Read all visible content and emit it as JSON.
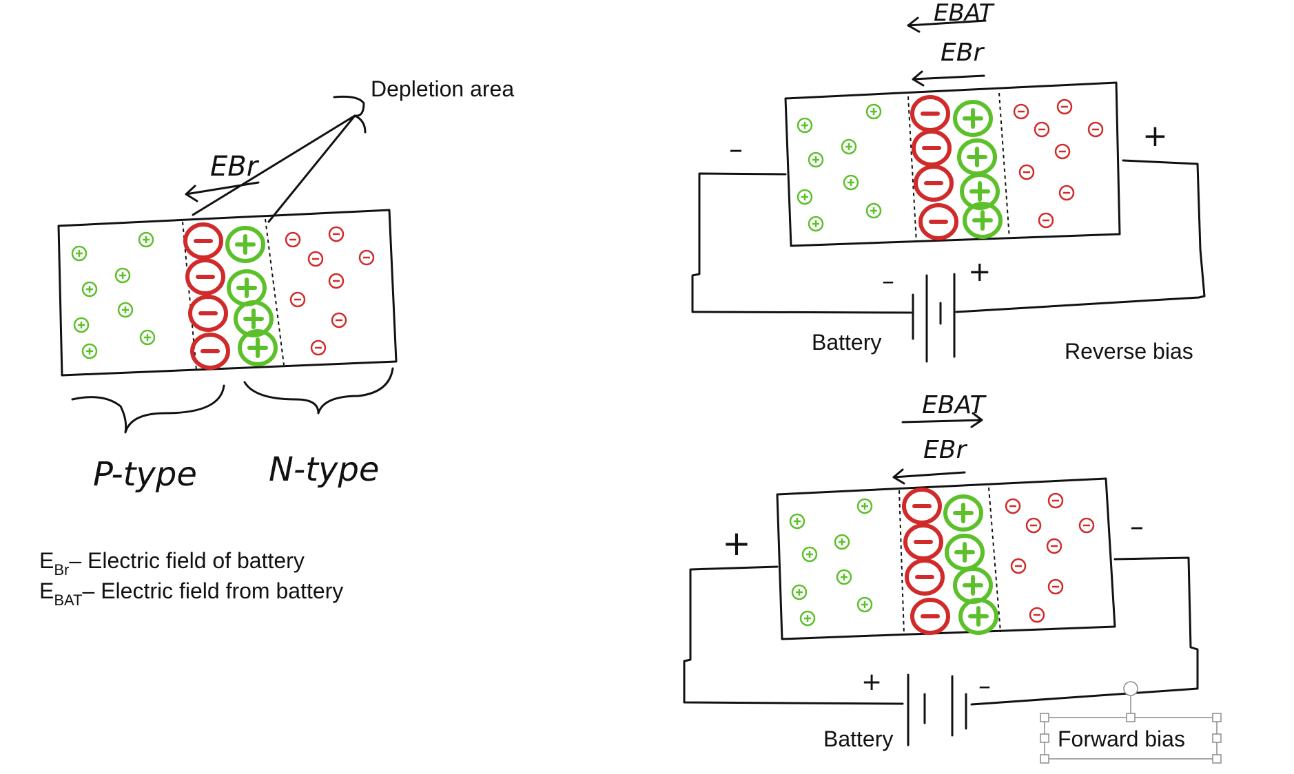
{
  "labels": {
    "depletion_area": "Depletion area",
    "e_br": "EBr",
    "e_bat": "EBAT",
    "p_type": "P-type",
    "n_type": "N-type",
    "legend_br_symbol": "E",
    "legend_br_sub": "Br",
    "legend_br_text": "– Electric field of battery",
    "legend_bat_symbol": "E",
    "legend_bat_sub": "BAT",
    "legend_bat_text": "– Electric field from battery",
    "battery_top": "Battery",
    "battery_bottom": "Battery",
    "reverse_bias": "Reverse bias",
    "forward_bias": "Forward bias",
    "minus": "–",
    "plus": "+"
  },
  "colors": {
    "negative": "#d12a2a",
    "positive": "#5cc02a",
    "ink": "#111111"
  }
}
